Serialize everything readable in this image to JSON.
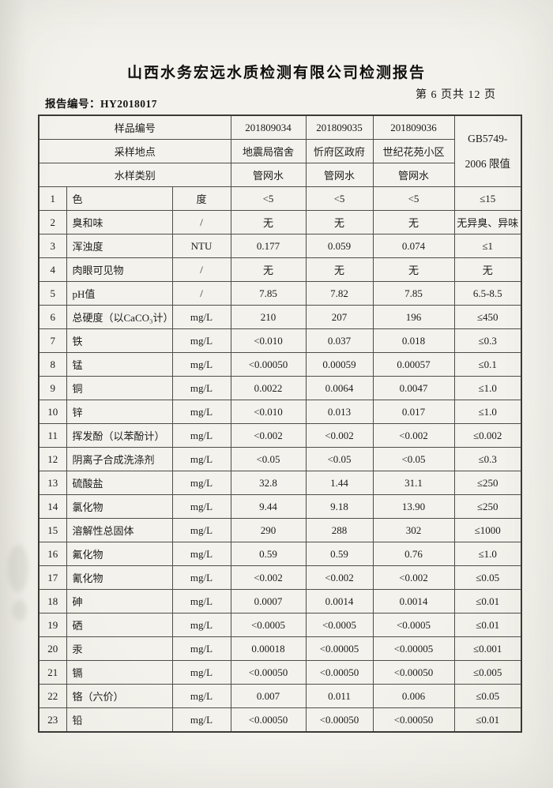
{
  "report": {
    "title": "山西水务宏远水质检测有限公司检测报告",
    "report_no": "报告编号：HY2018017",
    "page_info": "第 6 页共 12 页"
  },
  "table": {
    "header": {
      "sample_id_label": "样品编号",
      "sample_ids": [
        "201809034",
        "201809035",
        "201809036"
      ],
      "location_label": "采样地点",
      "locations": [
        "地震局宿舍",
        "忻府区政府",
        "世纪花苑小区"
      ],
      "type_label": "水样类别",
      "types": [
        "管网水",
        "管网水",
        "管网水"
      ],
      "limit_header_line1": "GB5749-",
      "limit_header_line2": "2006 限值"
    },
    "rows": [
      {
        "num": "1",
        "name": "色",
        "unit": "度",
        "v1": "<5",
        "v2": "<5",
        "v3": "<5",
        "limit": "≤15"
      },
      {
        "num": "2",
        "name": "臭和味",
        "unit": "/",
        "v1": "无",
        "v2": "无",
        "v3": "无",
        "limit": "无异臭、异味"
      },
      {
        "num": "3",
        "name": "浑浊度",
        "unit": "NTU",
        "v1": "0.177",
        "v2": "0.059",
        "v3": "0.074",
        "limit": "≤1"
      },
      {
        "num": "4",
        "name": "肉眼可见物",
        "unit": "/",
        "v1": "无",
        "v2": "无",
        "v3": "无",
        "limit": "无"
      },
      {
        "num": "5",
        "name": "pH值",
        "unit": "/",
        "v1": "7.85",
        "v2": "7.82",
        "v3": "7.85",
        "limit": "6.5-8.5"
      },
      {
        "num": "6",
        "name": "总硬度（以CaCO₃计）",
        "unit": "mg/L",
        "v1": "210",
        "v2": "207",
        "v3": "196",
        "limit": "≤450"
      },
      {
        "num": "7",
        "name": "铁",
        "unit": "mg/L",
        "v1": "<0.010",
        "v2": "0.037",
        "v3": "0.018",
        "limit": "≤0.3"
      },
      {
        "num": "8",
        "name": "锰",
        "unit": "mg/L",
        "v1": "<0.00050",
        "v2": "0.00059",
        "v3": "0.00057",
        "limit": "≤0.1"
      },
      {
        "num": "9",
        "name": "铜",
        "unit": "mg/L",
        "v1": "0.0022",
        "v2": "0.0064",
        "v3": "0.0047",
        "limit": "≤1.0"
      },
      {
        "num": "10",
        "name": "锌",
        "unit": "mg/L",
        "v1": "<0.010",
        "v2": "0.013",
        "v3": "0.017",
        "limit": "≤1.0"
      },
      {
        "num": "11",
        "name": "挥发酚（以苯酚计）",
        "unit": "mg/L",
        "v1": "<0.002",
        "v2": "<0.002",
        "v3": "<0.002",
        "limit": "≤0.002"
      },
      {
        "num": "12",
        "name": "阴离子合成洗涤剂",
        "unit": "mg/L",
        "v1": "<0.05",
        "v2": "<0.05",
        "v3": "<0.05",
        "limit": "≤0.3"
      },
      {
        "num": "13",
        "name": "硫酸盐",
        "unit": "mg/L",
        "v1": "32.8",
        "v2": "1.44",
        "v3": "31.1",
        "limit": "≤250"
      },
      {
        "num": "14",
        "name": "氯化物",
        "unit": "mg/L",
        "v1": "9.44",
        "v2": "9.18",
        "v3": "13.90",
        "limit": "≤250"
      },
      {
        "num": "15",
        "name": "溶解性总固体",
        "unit": "mg/L",
        "v1": "290",
        "v2": "288",
        "v3": "302",
        "limit": "≤1000"
      },
      {
        "num": "16",
        "name": "氟化物",
        "unit": "mg/L",
        "v1": "0.59",
        "v2": "0.59",
        "v3": "0.76",
        "limit": "≤1.0"
      },
      {
        "num": "17",
        "name": "氰化物",
        "unit": "mg/L",
        "v1": "<0.002",
        "v2": "<0.002",
        "v3": "<0.002",
        "limit": "≤0.05"
      },
      {
        "num": "18",
        "name": "砷",
        "unit": "mg/L",
        "v1": "0.0007",
        "v2": "0.0014",
        "v3": "0.0014",
        "limit": "≤0.01"
      },
      {
        "num": "19",
        "name": "硒",
        "unit": "mg/L",
        "v1": "<0.0005",
        "v2": "<0.0005",
        "v3": "<0.0005",
        "limit": "≤0.01"
      },
      {
        "num": "20",
        "name": "汞",
        "unit": "mg/L",
        "v1": "0.00018",
        "v2": "<0.00005",
        "v3": "<0.00005",
        "limit": "≤0.001"
      },
      {
        "num": "21",
        "name": "镉",
        "unit": "mg/L",
        "v1": "<0.00050",
        "v2": "<0.00050",
        "v3": "<0.00050",
        "limit": "≤0.005"
      },
      {
        "num": "22",
        "name": "铬（六价）",
        "unit": "mg/L",
        "v1": "0.007",
        "v2": "0.011",
        "v3": "0.006",
        "limit": "≤0.05"
      },
      {
        "num": "23",
        "name": "铅",
        "unit": "mg/L",
        "v1": "<0.00050",
        "v2": "<0.00050",
        "v3": "<0.00050",
        "limit": "≤0.01"
      }
    ]
  }
}
